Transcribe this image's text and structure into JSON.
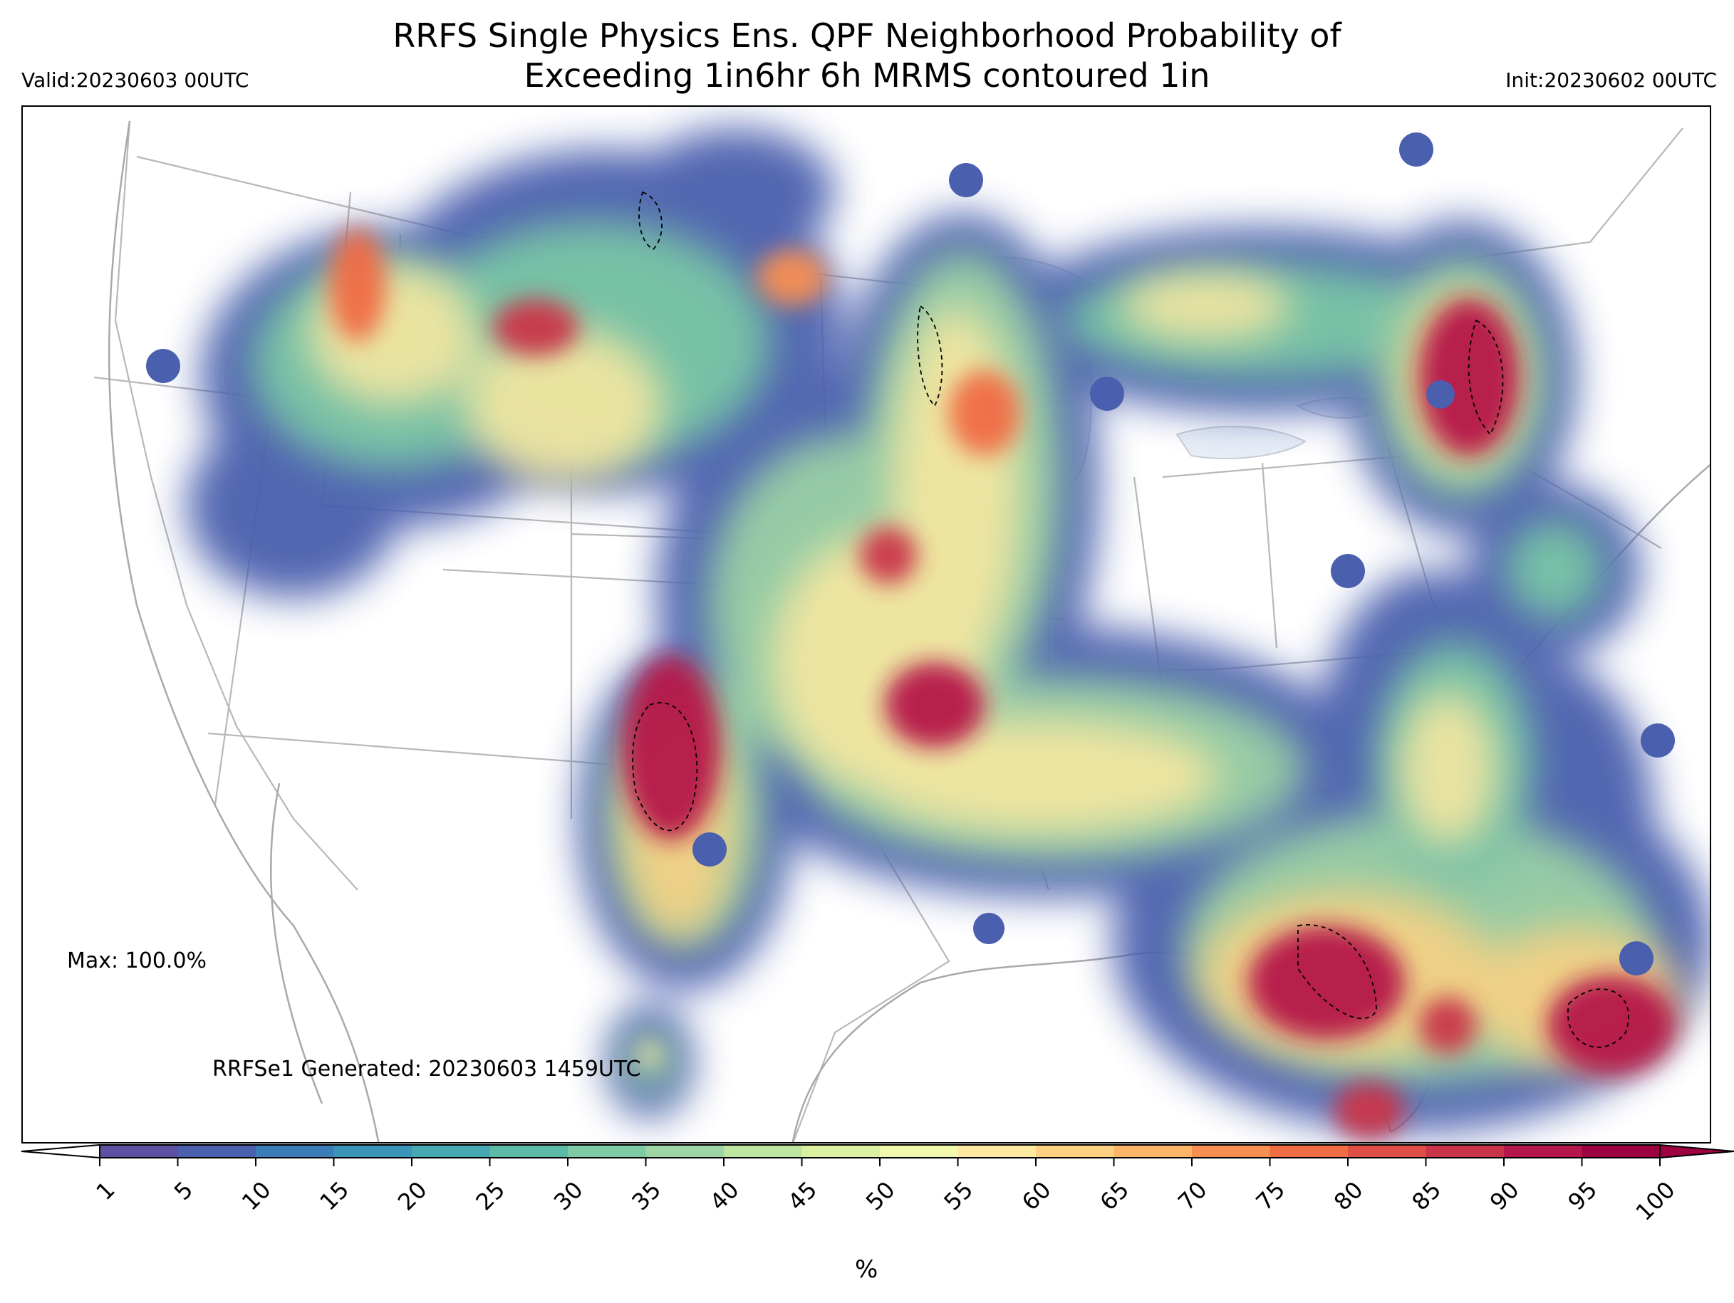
{
  "header": {
    "title_line1": "RRFS Single Physics Ens. QPF Neighborhood Probability of",
    "title_line2": "Exceeding 1in6hr 6h MRMS contoured 1in",
    "valid": "Valid:20230603 00UTC",
    "init": "Init:20230602 00UTC"
  },
  "map": {
    "max_label": "Max: 100.0%",
    "generated_label": "RRFSe1 Generated: 20230603 1459UTC",
    "boundary_color": "#b8b8b8",
    "lake_color": "#e8eef6"
  },
  "colorbar": {
    "ticks": [
      "1",
      "5",
      "10",
      "15",
      "20",
      "25",
      "30",
      "35",
      "40",
      "45",
      "50",
      "55",
      "60",
      "65",
      "70",
      "75",
      "80",
      "85",
      "90",
      "95",
      "100"
    ],
    "colors": [
      "#5e4fa2",
      "#4a5fad",
      "#3a7db8",
      "#3a95b8",
      "#46a8b2",
      "#5cbba7",
      "#7ccba5",
      "#9dd6a4",
      "#bde5a0",
      "#dcf0a2",
      "#f3f9ac",
      "#fde9a0",
      "#fdd181",
      "#fdb567",
      "#f88f52",
      "#f06c44",
      "#e04f45",
      "#c93449",
      "#b5174a",
      "#9e0142"
    ],
    "under_color": "#ffffff",
    "over_color": "#9e0142",
    "unit_label": "%"
  }
}
